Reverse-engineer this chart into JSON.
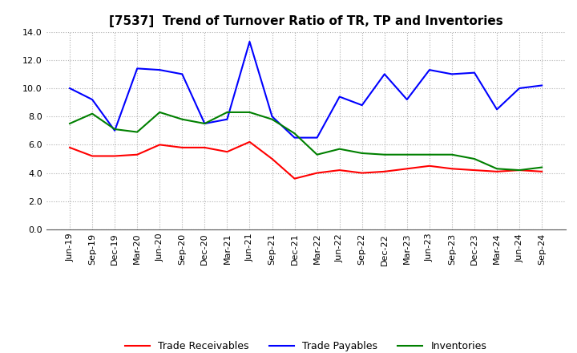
{
  "title": "[7537]  Trend of Turnover Ratio of TR, TP and Inventories",
  "x_labels": [
    "Jun-19",
    "Sep-19",
    "Dec-19",
    "Mar-20",
    "Jun-20",
    "Sep-20",
    "Dec-20",
    "Mar-21",
    "Jun-21",
    "Sep-21",
    "Dec-21",
    "Mar-22",
    "Jun-22",
    "Sep-22",
    "Dec-22",
    "Mar-23",
    "Jun-23",
    "Sep-23",
    "Dec-23",
    "Mar-24",
    "Jun-24",
    "Sep-24"
  ],
  "trade_receivables": [
    5.8,
    5.2,
    5.2,
    5.3,
    6.0,
    5.8,
    5.8,
    5.5,
    6.2,
    5.0,
    3.6,
    4.0,
    4.2,
    4.0,
    4.1,
    4.3,
    4.5,
    4.3,
    4.2,
    4.1,
    4.2,
    4.1
  ],
  "trade_payables": [
    10.0,
    9.2,
    7.0,
    11.4,
    11.3,
    11.0,
    7.5,
    7.8,
    13.3,
    8.0,
    6.5,
    6.5,
    9.4,
    8.8,
    11.0,
    9.2,
    11.3,
    11.0,
    11.1,
    8.5,
    10.0,
    10.2
  ],
  "inventories": [
    7.5,
    8.2,
    7.1,
    6.9,
    8.3,
    7.8,
    7.5,
    8.3,
    8.3,
    7.8,
    6.8,
    5.3,
    5.7,
    5.4,
    5.3,
    5.3,
    5.3,
    5.3,
    5.0,
    4.3,
    4.2,
    4.4
  ],
  "ylim": [
    0.0,
    14.0
  ],
  "yticks": [
    0.0,
    2.0,
    4.0,
    6.0,
    8.0,
    10.0,
    12.0,
    14.0
  ],
  "color_tr": "#ff0000",
  "color_tp": "#0000ff",
  "color_inv": "#008000",
  "legend_labels": [
    "Trade Receivables",
    "Trade Payables",
    "Inventories"
  ],
  "background_color": "#ffffff",
  "grid_color": "#b0b0b0",
  "title_fontsize": 11,
  "tick_fontsize": 8,
  "legend_fontsize": 9
}
